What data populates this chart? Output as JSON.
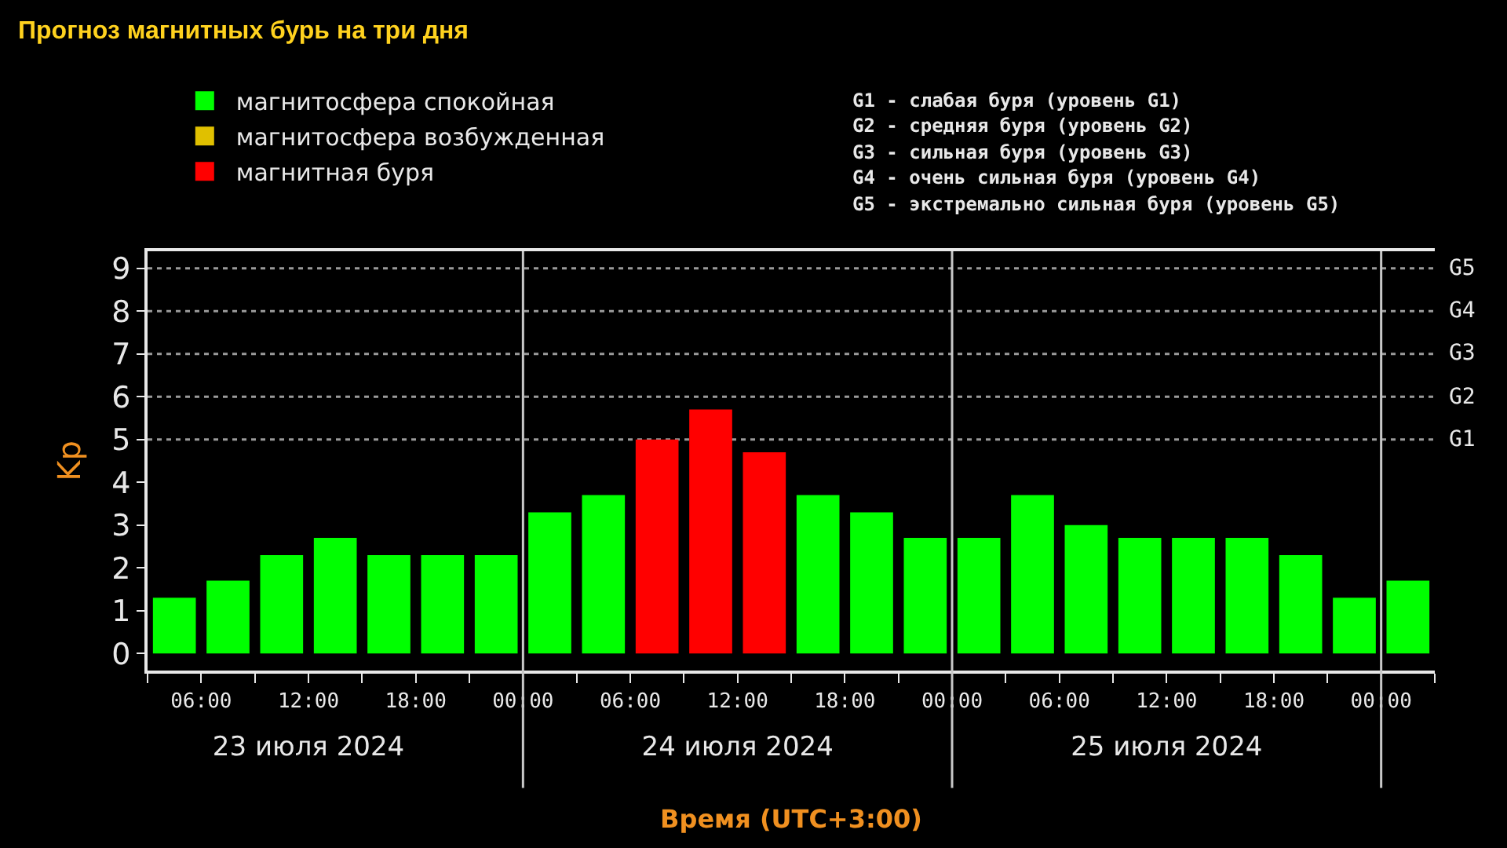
{
  "chart_data": {
    "type": "bar",
    "title": "Прогноз магнитных бурь на три дня",
    "xlabel": "Время (UTC+3:00)",
    "ylabel": "Kp",
    "x": [
      "2024-07-23T04:30",
      "2024-07-23T07:30",
      "2024-07-23T10:30",
      "2024-07-23T13:30",
      "2024-07-23T16:30",
      "2024-07-23T19:30",
      "2024-07-23T22:30",
      "2024-07-24T01:30",
      "2024-07-24T04:30",
      "2024-07-24T07:30",
      "2024-07-24T10:30",
      "2024-07-24T13:30",
      "2024-07-24T16:30",
      "2024-07-24T19:30",
      "2024-07-24T22:30",
      "2024-07-25T01:30",
      "2024-07-25T04:30",
      "2024-07-25T07:30",
      "2024-07-25T10:30",
      "2024-07-25T13:30",
      "2024-07-25T16:30",
      "2024-07-25T19:30",
      "2024-07-25T22:30",
      "2024-07-26T01:30"
    ],
    "series": [
      {
        "name": "магнитосфера спокойная",
        "color": "#00ff00",
        "values": [
          1.3,
          1.7,
          2.3,
          2.7,
          2.3,
          2.3,
          2.3,
          3.3,
          3.7,
          null,
          null,
          null,
          3.7,
          3.3,
          2.7,
          2.7,
          3.7,
          3.0,
          2.7,
          2.7,
          2.7,
          2.3,
          1.3,
          1.7
        ]
      },
      {
        "name": "магнитосфера возбужденная",
        "color": "#e0c000",
        "values": [
          null,
          null,
          null,
          null,
          null,
          null,
          null,
          null,
          null,
          null,
          null,
          null,
          null,
          null,
          null,
          null,
          null,
          null,
          null,
          null,
          null,
          null,
          null,
          null
        ]
      },
      {
        "name": "магнитная буря",
        "color": "#ff0000",
        "values": [
          null,
          null,
          null,
          null,
          null,
          null,
          null,
          null,
          null,
          5.0,
          5.7,
          4.7,
          null,
          null,
          null,
          null,
          null,
          null,
          null,
          null,
          null,
          null,
          null,
          null
        ]
      }
    ],
    "xlim": [
      "2024-07-23T03:00",
      "2024-07-26T03:00"
    ],
    "xticks": [
      {
        "value": "2024-07-23T03:00",
        "label": null
      },
      {
        "value": "2024-07-23T06:00",
        "label": "06:00"
      },
      {
        "value": "2024-07-23T09:00",
        "label": null
      },
      {
        "value": "2024-07-23T12:00",
        "label": "12:00"
      },
      {
        "value": "2024-07-23T15:00",
        "label": null
      },
      {
        "value": "2024-07-23T18:00",
        "label": "18:00"
      },
      {
        "value": "2024-07-23T21:00",
        "label": null
      },
      {
        "value": "2024-07-24T00:00",
        "label": "00:00"
      },
      {
        "value": "2024-07-24T03:00",
        "label": null
      },
      {
        "value": "2024-07-24T06:00",
        "label": "06:00"
      },
      {
        "value": "2024-07-24T09:00",
        "label": null
      },
      {
        "value": "2024-07-24T12:00",
        "label": "12:00"
      },
      {
        "value": "2024-07-24T15:00",
        "label": null
      },
      {
        "value": "2024-07-24T18:00",
        "label": "18:00"
      },
      {
        "value": "2024-07-24T21:00",
        "label": null
      },
      {
        "value": "2024-07-25T00:00",
        "label": "00:00"
      },
      {
        "value": "2024-07-25T03:00",
        "label": null
      },
      {
        "value": "2024-07-25T06:00",
        "label": "06:00"
      },
      {
        "value": "2024-07-25T09:00",
        "label": null
      },
      {
        "value": "2024-07-25T12:00",
        "label": "12:00"
      },
      {
        "value": "2024-07-25T15:00",
        "label": null
      },
      {
        "value": "2024-07-25T18:00",
        "label": "18:00"
      },
      {
        "value": "2024-07-25T21:00",
        "label": null
      },
      {
        "value": "2024-07-26T00:00",
        "label": "00:00"
      },
      {
        "value": "2024-07-26T03:00",
        "label": null
      }
    ],
    "x2lim": [
      "2024-07-23T03:00",
      "2024-07-26T03:00"
    ],
    "x2ticks": [
      {
        "value": "2024-07-23T12:00",
        "label": "23 июля 2024"
      },
      {
        "value": "2024-07-24T12:00",
        "label": "24 июля 2024"
      },
      {
        "value": "2024-07-25T12:00",
        "label": "25 июля 2024"
      }
    ],
    "ylim": [
      -0.4,
      9.4
    ],
    "yticks": [
      0,
      1,
      2,
      3,
      4,
      5,
      6,
      7,
      8,
      9
    ],
    "ref_lines": [
      {
        "axis": "x",
        "value": "2024-07-24T00:00",
        "color": "#c8c8c8"
      },
      {
        "axis": "x",
        "value": "2024-07-25T00:00",
        "color": "#c8c8c8"
      },
      {
        "axis": "x",
        "value": "2024-07-26T00:00",
        "color": "#c8c8c8"
      },
      {
        "axis": "y",
        "value": 5,
        "label": "G1",
        "color": "#9a9a9a",
        "line_style": "dotted"
      },
      {
        "axis": "y",
        "value": 6,
        "label": "G2",
        "color": "#9a9a9a",
        "line_style": "dotted"
      },
      {
        "axis": "y",
        "value": 7,
        "label": "G3",
        "color": "#9a9a9a",
        "line_style": "dotted"
      },
      {
        "axis": "y",
        "value": 8,
        "label": "G4",
        "color": "#9a9a9a",
        "line_style": "dotted"
      },
      {
        "axis": "y",
        "value": 9,
        "label": "G5",
        "color": "#9a9a9a",
        "line_style": "dotted"
      }
    ],
    "annotations": [
      "G1 - слабая буря (уровень G1)",
      "G2 - средняя буря (уровень G2)",
      "G3 - сильная буря (уровень G3)",
      "G4 - очень сильная буря (уровень G4)",
      "G5 - экстремально сильная буря (уровень G5)"
    ],
    "legend": "top left"
  }
}
